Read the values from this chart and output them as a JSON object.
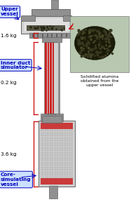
{
  "background_color": "#ffffff",
  "labels": {
    "upper_vessel": "Upper\nvessel",
    "inner_duct": "Inner duct\nsimulator",
    "core_simulating": "Core-\nsimulating\nvessel",
    "mass_upper": "1.6 kg",
    "mass_inner": "0.2 kg",
    "mass_core": "3.6 kg",
    "photo_label": "Solidified alumina\nobtained from the\nupper vessel"
  },
  "colors": {
    "gray_dark": "#606060",
    "gray_medium": "#909090",
    "gray_light": "#b8b8b8",
    "gray_lighter": "#d0d0d0",
    "red": "#cc0000",
    "red_fill": "#cc2222",
    "blue_label": "#0000bb",
    "blue_box": "#cce0ff",
    "white": "#ffffff",
    "black": "#000000",
    "photo_bg": "#b8c8b0",
    "blob_dark": "#1a1a08",
    "blob_mid": "#2a2a10"
  }
}
